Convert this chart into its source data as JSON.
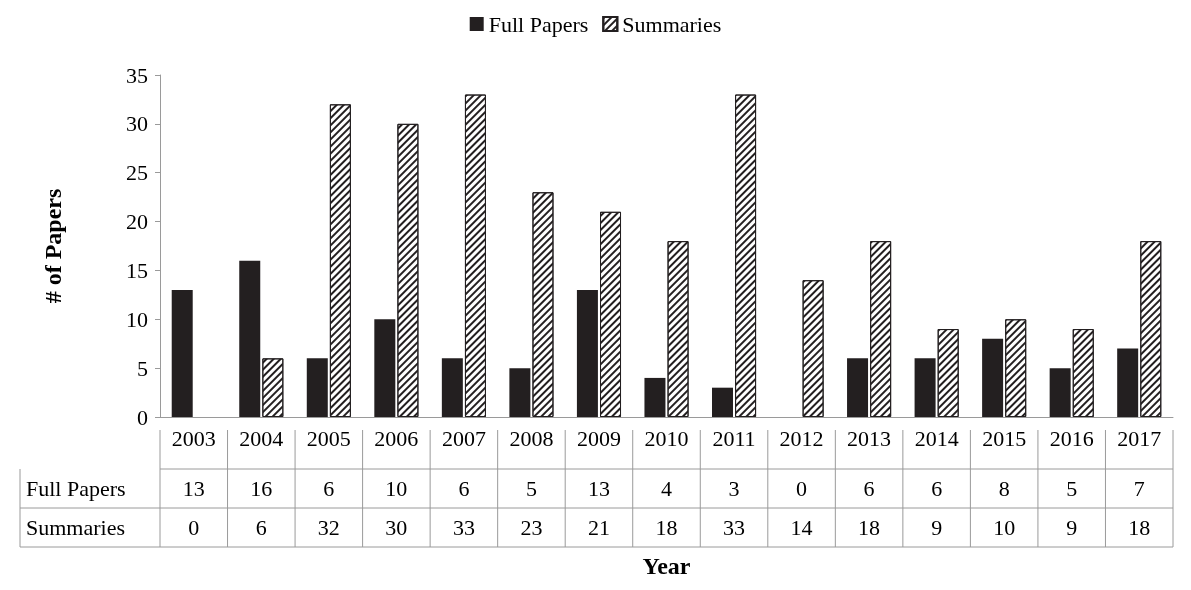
{
  "chart_data": {
    "type": "bar",
    "xlabel": "Year",
    "ylabel": "# of Papers",
    "categories": [
      "2003",
      "2004",
      "2005",
      "2006",
      "2007",
      "2008",
      "2009",
      "2010",
      "2011",
      "2012",
      "2013",
      "2014",
      "2015",
      "2016",
      "2017"
    ],
    "series": [
      {
        "name": "Full Papers",
        "color": "#231f20",
        "values": [
          13,
          16,
          6,
          10,
          6,
          5,
          13,
          4,
          3,
          0,
          6,
          6,
          8,
          5,
          7
        ]
      },
      {
        "name": "Summaries",
        "color": "#ffffff",
        "values": [
          0,
          6,
          32,
          30,
          33,
          23,
          21,
          18,
          33,
          14,
          18,
          9,
          10,
          9,
          18
        ]
      }
    ],
    "ylim": [
      0,
      35
    ],
    "yticks": [
      0,
      5,
      10,
      15,
      20,
      25,
      30,
      35
    ],
    "legend": "top",
    "data_labels": true
  }
}
